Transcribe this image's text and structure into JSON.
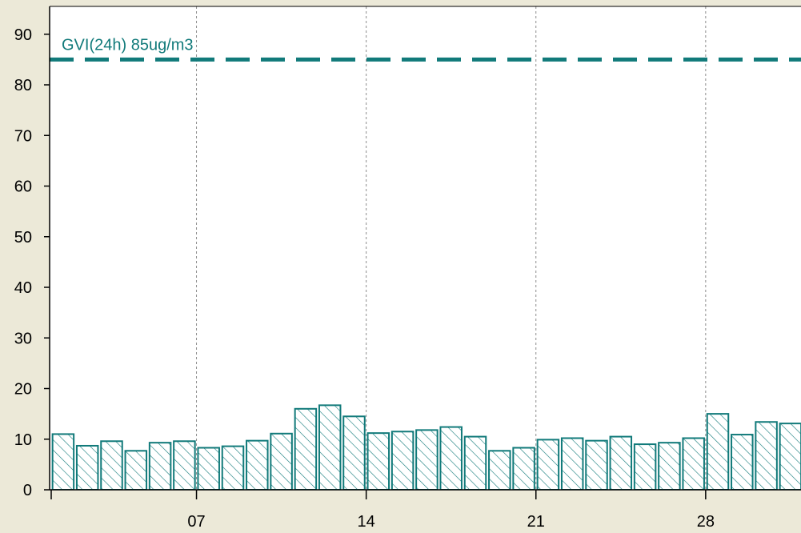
{
  "chart_data": {
    "type": "bar",
    "title": "",
    "xlabel": "",
    "ylabel": "",
    "ylim": [
      0,
      95
    ],
    "yticks": [
      0,
      10,
      20,
      30,
      40,
      50,
      60,
      70,
      80,
      90
    ],
    "x": [
      1,
      2,
      3,
      4,
      5,
      6,
      7,
      8,
      9,
      10,
      11,
      12,
      13,
      14,
      15,
      16,
      17,
      18,
      19,
      20,
      21,
      22,
      23,
      24,
      25,
      26,
      27,
      28,
      29,
      30,
      31
    ],
    "xtick_labels": [
      {
        "x": 7,
        "label": "07"
      },
      {
        "x": 14,
        "label": "14"
      },
      {
        "x": 21,
        "label": "21"
      },
      {
        "x": 28,
        "label": "28"
      }
    ],
    "values": [
      11,
      8.7,
      9.6,
      7.7,
      9.3,
      9.6,
      8.3,
      8.6,
      9.7,
      11.1,
      16,
      16.7,
      14.5,
      11.2,
      11.5,
      11.8,
      12.4,
      10.5,
      7.7,
      8.3,
      9.9,
      10.2,
      9.7,
      10.5,
      9,
      9.3,
      10.2,
      15,
      10.9,
      13.4,
      13.1
    ],
    "reference_line": {
      "value": 85,
      "label": "GVI(24h) 85ug/m3"
    },
    "grid": {
      "vertical": true,
      "horizontal": false
    },
    "colors": {
      "bar_stroke": "#117a7a",
      "hatch": "#117a7a",
      "reference": "#117a7a",
      "grid": "#8c8c8c",
      "plot_bg": "#ffffff",
      "page_bg": "#ece9d8"
    }
  }
}
